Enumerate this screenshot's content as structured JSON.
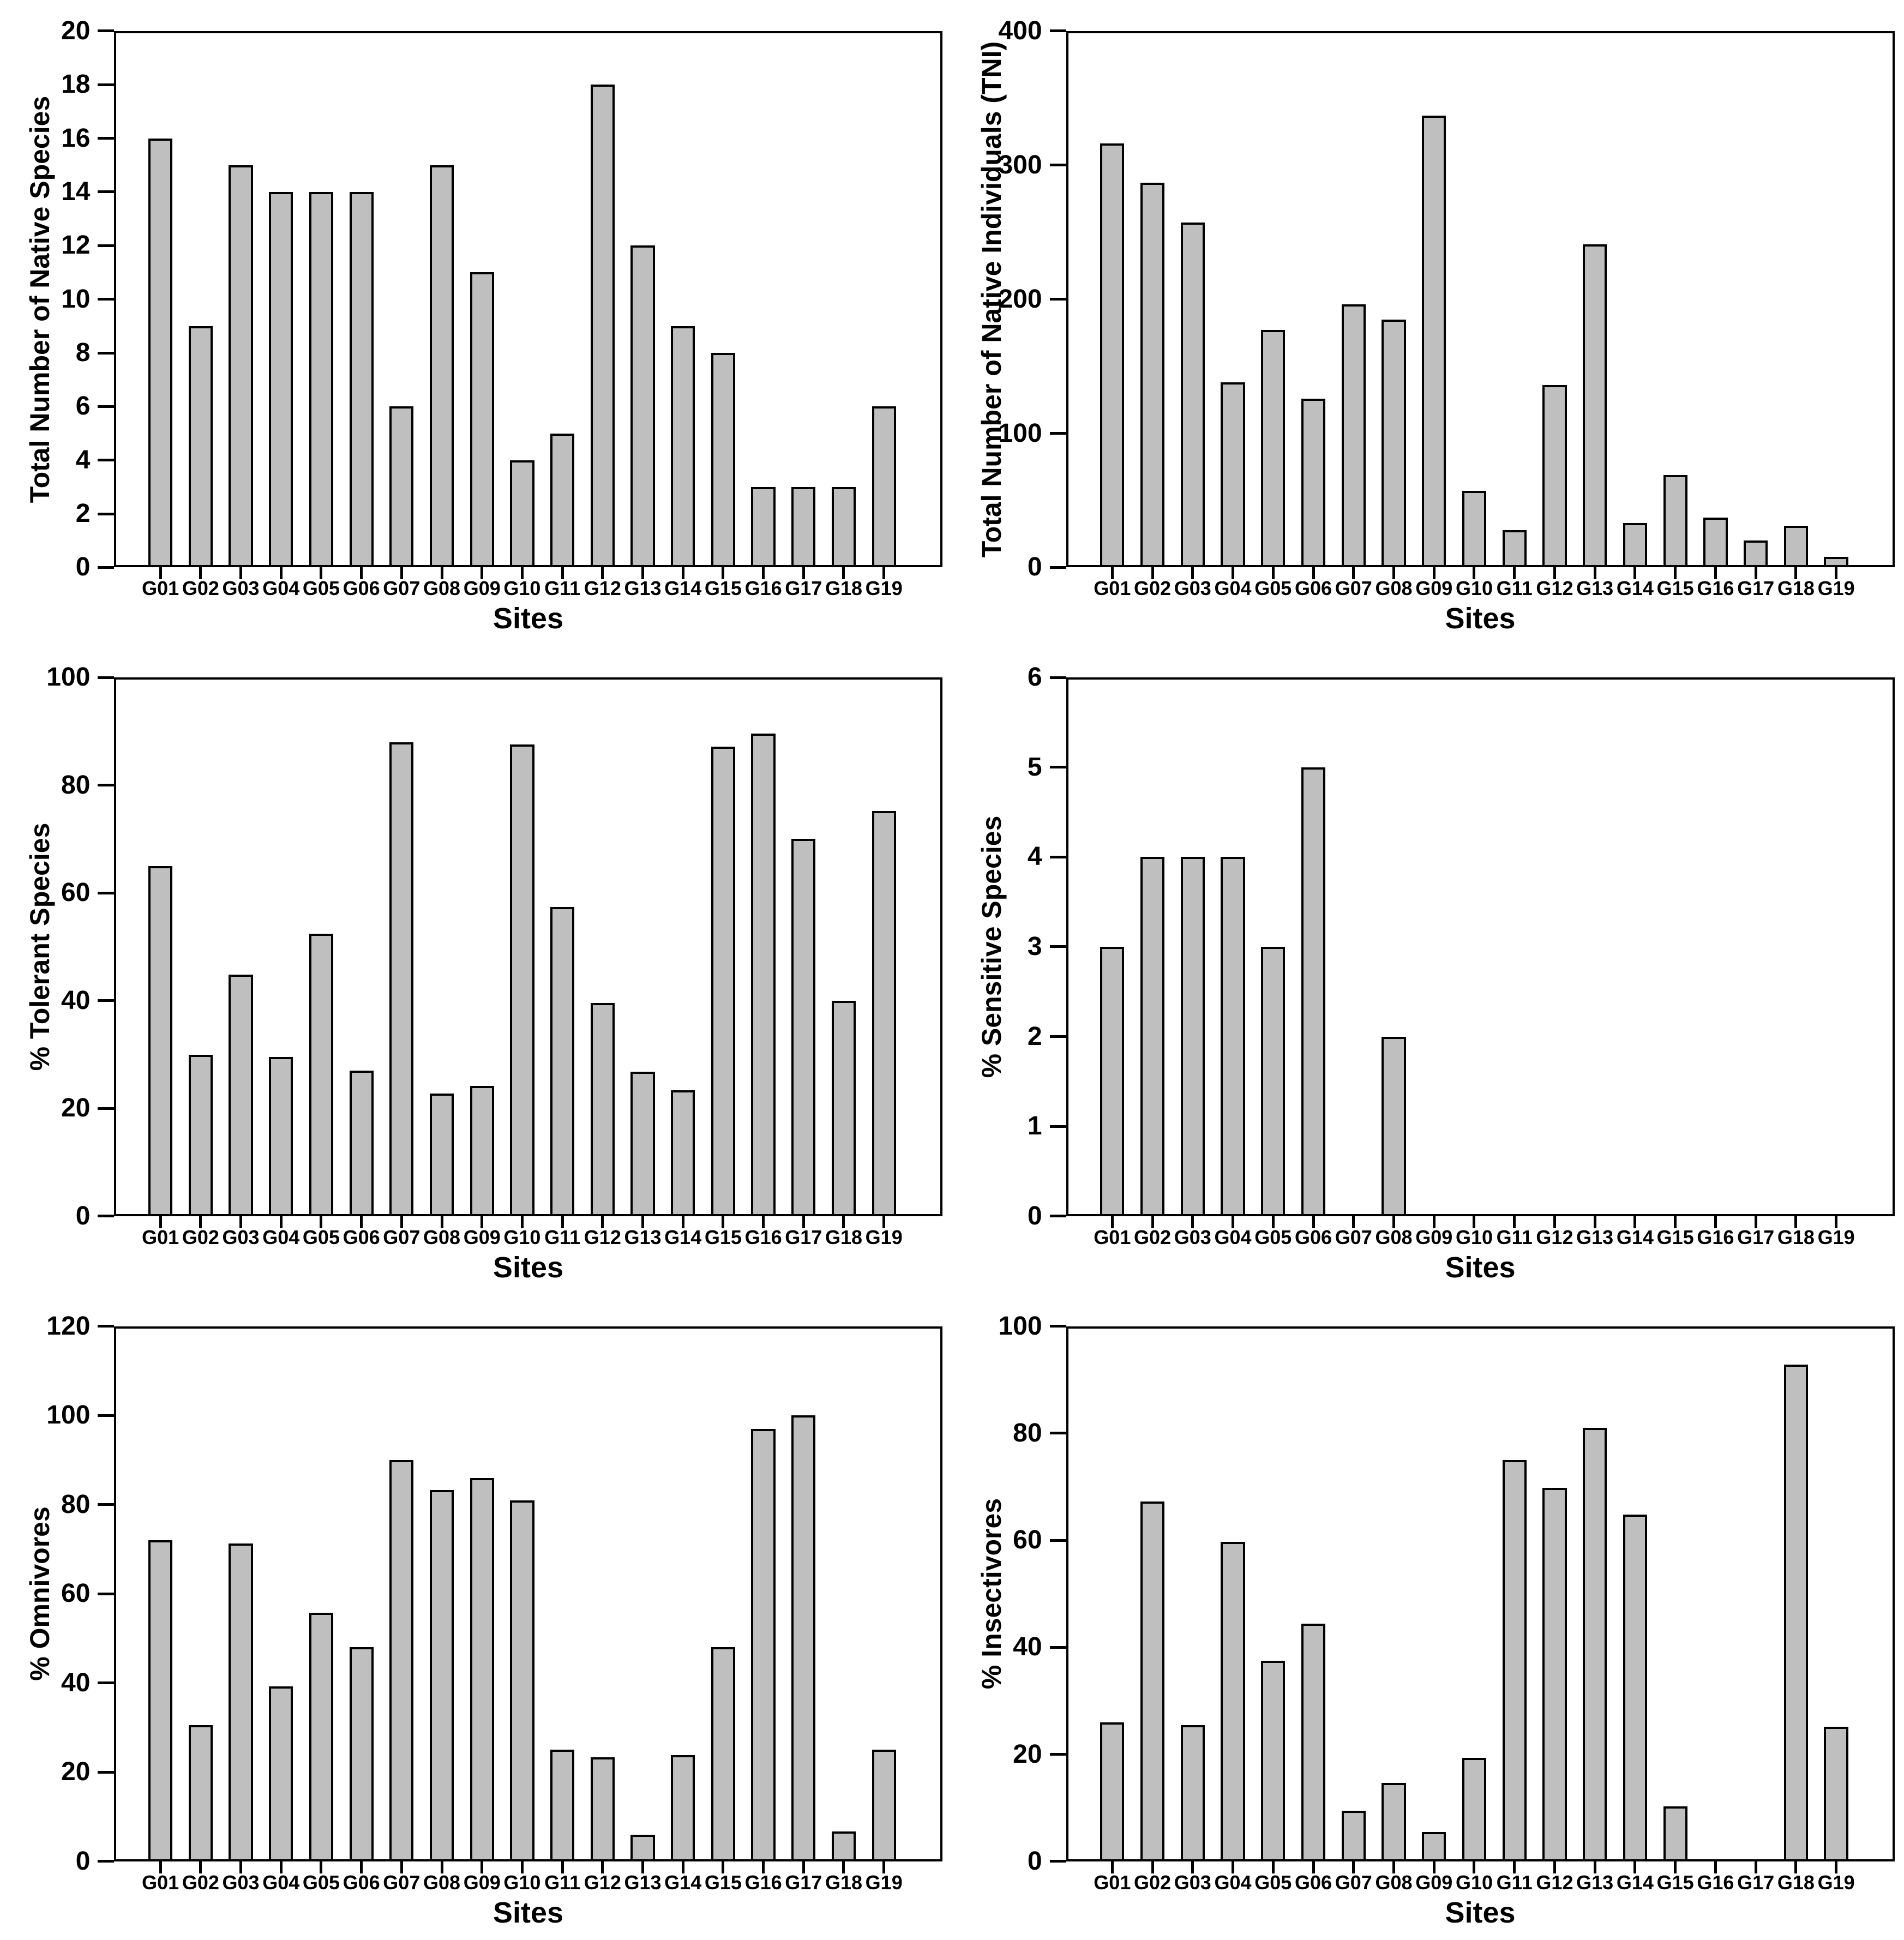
{
  "figure": {
    "background": "#ffffff",
    "bar_fill": "#bfbfbf",
    "bar_stroke": "#000000",
    "text_color": "#000000"
  },
  "categories": [
    "G01",
    "G02",
    "G03",
    "G04",
    "G05",
    "G06",
    "G07",
    "G08",
    "G09",
    "G10",
    "G11",
    "G12",
    "G13",
    "G14",
    "G15",
    "G16",
    "G17",
    "G18",
    "G19"
  ],
  "chart_data": [
    {
      "type": "bar",
      "title": "",
      "xlabel": "Sites",
      "ylabel": "Total Number of Native Species",
      "ylim": [
        0,
        20
      ],
      "ystep": 2,
      "grid": false,
      "legend": "none",
      "categories": [
        "G01",
        "G02",
        "G03",
        "G04",
        "G05",
        "G06",
        "G07",
        "G08",
        "G09",
        "G10",
        "G11",
        "G12",
        "G13",
        "G14",
        "G15",
        "G16",
        "G17",
        "G18",
        "G19"
      ],
      "values": [
        16,
        9,
        15,
        14,
        14,
        14,
        6,
        15,
        11,
        4,
        5,
        18,
        12,
        9,
        8,
        3,
        3,
        3,
        6
      ]
    },
    {
      "type": "bar",
      "title": "",
      "xlabel": "Sites",
      "ylabel": "Total Number of Native Individuals (TNI)",
      "ylim": [
        0,
        400
      ],
      "ystep": 100,
      "grid": false,
      "legend": "none",
      "categories": [
        "G01",
        "G02",
        "G03",
        "G04",
        "G05",
        "G06",
        "G07",
        "G08",
        "G09",
        "G10",
        "G11",
        "G12",
        "G13",
        "G14",
        "G15",
        "G16",
        "G17",
        "G18",
        "G19"
      ],
      "values": [
        316,
        287,
        257,
        138,
        177,
        126,
        196,
        185,
        337,
        57,
        28,
        136,
        241,
        33,
        69,
        37,
        20,
        31,
        8
      ]
    },
    {
      "type": "bar",
      "title": "",
      "xlabel": "Sites",
      "ylabel": "% Tolerant Species",
      "ylim": [
        0,
        100
      ],
      "ystep": 20,
      "grid": false,
      "legend": "none",
      "categories": [
        "G01",
        "G02",
        "G03",
        "G04",
        "G05",
        "G06",
        "G07",
        "G08",
        "G09",
        "G10",
        "G11",
        "G12",
        "G13",
        "G14",
        "G15",
        "G16",
        "G17",
        "G18",
        "G19"
      ],
      "values": [
        65,
        30,
        44.8,
        29.5,
        52.4,
        27,
        88,
        22.8,
        24.2,
        87.6,
        57.4,
        39.6,
        26.8,
        23.4,
        87.2,
        89.6,
        70,
        40,
        75.2
      ]
    },
    {
      "type": "bar",
      "title": "",
      "xlabel": "Sites",
      "ylabel": "% Sensitive Species",
      "ylim": [
        0,
        6
      ],
      "ystep": 1,
      "grid": false,
      "legend": "none",
      "categories": [
        "G01",
        "G02",
        "G03",
        "G04",
        "G05",
        "G06",
        "G07",
        "G08",
        "G09",
        "G10",
        "G11",
        "G12",
        "G13",
        "G14",
        "G15",
        "G16",
        "G17",
        "G18",
        "G19"
      ],
      "values": [
        3,
        4,
        4,
        4,
        3,
        5,
        0,
        2,
        0,
        0,
        0,
        0,
        0,
        0,
        0,
        0,
        0,
        0,
        0
      ]
    },
    {
      "type": "bar",
      "title": "",
      "xlabel": "Sites",
      "ylabel": "% Omnivores",
      "ylim": [
        0,
        120
      ],
      "ystep": 20,
      "grid": false,
      "legend": "none",
      "categories": [
        "G01",
        "G02",
        "G03",
        "G04",
        "G05",
        "G06",
        "G07",
        "G08",
        "G09",
        "G10",
        "G11",
        "G12",
        "G13",
        "G14",
        "G15",
        "G16",
        "G17",
        "G18",
        "G19"
      ],
      "values": [
        72,
        30.5,
        71.3,
        39.2,
        55.8,
        48,
        90,
        83.3,
        86,
        81,
        25,
        23.3,
        6,
        23.8,
        48,
        97,
        100,
        6.7,
        25
      ]
    },
    {
      "type": "bar",
      "title": "",
      "xlabel": "Sites",
      "ylabel": "% Insectivores",
      "ylim": [
        0,
        100
      ],
      "ystep": 20,
      "grid": false,
      "legend": "none",
      "categories": [
        "G01",
        "G02",
        "G03",
        "G04",
        "G05",
        "G06",
        "G07",
        "G08",
        "G09",
        "G10",
        "G11",
        "G12",
        "G13",
        "G14",
        "G15",
        "G16",
        "G17",
        "G18",
        "G19"
      ],
      "values": [
        26,
        67.3,
        25.5,
        59.7,
        37.5,
        44.4,
        9.5,
        14.7,
        5.5,
        19.3,
        75,
        69.8,
        81,
        64.8,
        10.3,
        0,
        0,
        92.8,
        25.2
      ]
    }
  ]
}
